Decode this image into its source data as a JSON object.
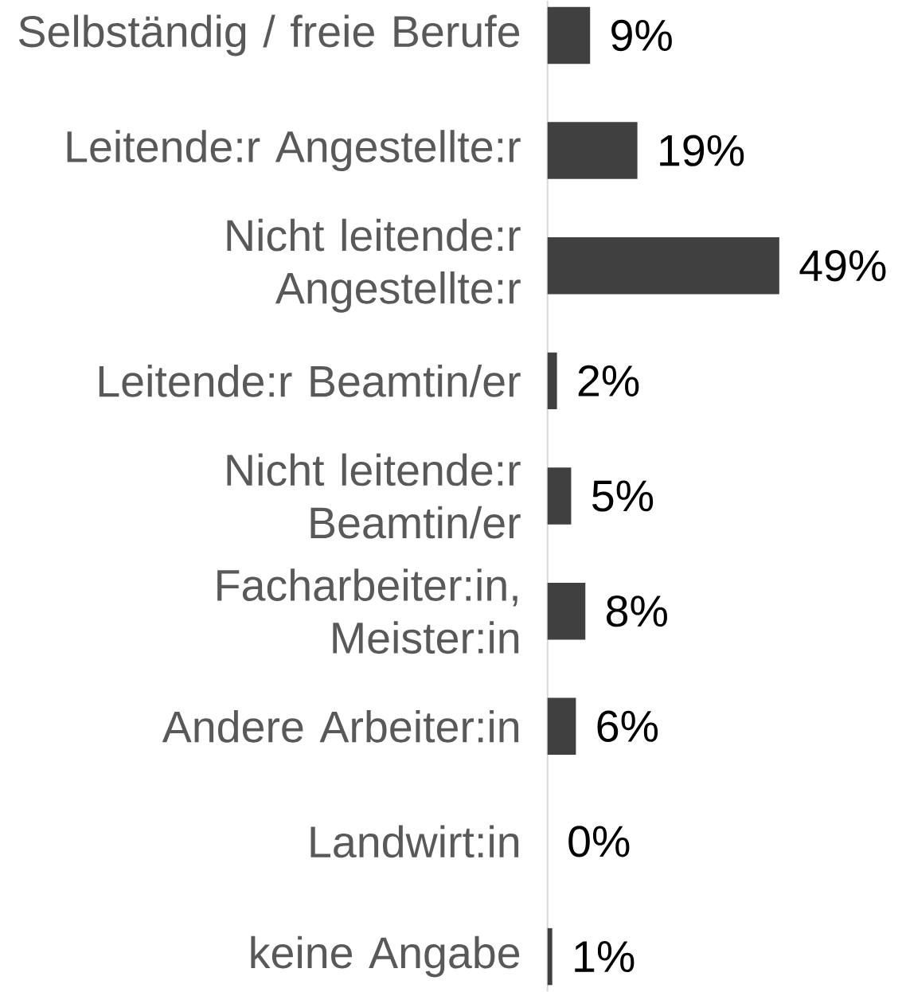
{
  "chart_data": {
    "type": "bar",
    "orientation": "horizontal",
    "categories": [
      "Selbständig / freie Berufe",
      "Leitende:r Angestellte:r",
      "Nicht leitende:r Angestellte:r",
      "Leitende:r Beamtin/er",
      "Nicht leitende:r Beamtin/er",
      "Facharbeiter:in, Meister:in",
      "Andere Arbeiter:in",
      "Landwirt:in",
      "keine Angabe"
    ],
    "values": [
      9,
      19,
      49,
      2,
      5,
      8,
      6,
      0,
      1
    ],
    "value_labels": [
      "9%",
      "19%",
      "49%",
      "2%",
      "5%",
      "8%",
      "6%",
      "0%",
      "1%"
    ],
    "color": "#404040"
  }
}
